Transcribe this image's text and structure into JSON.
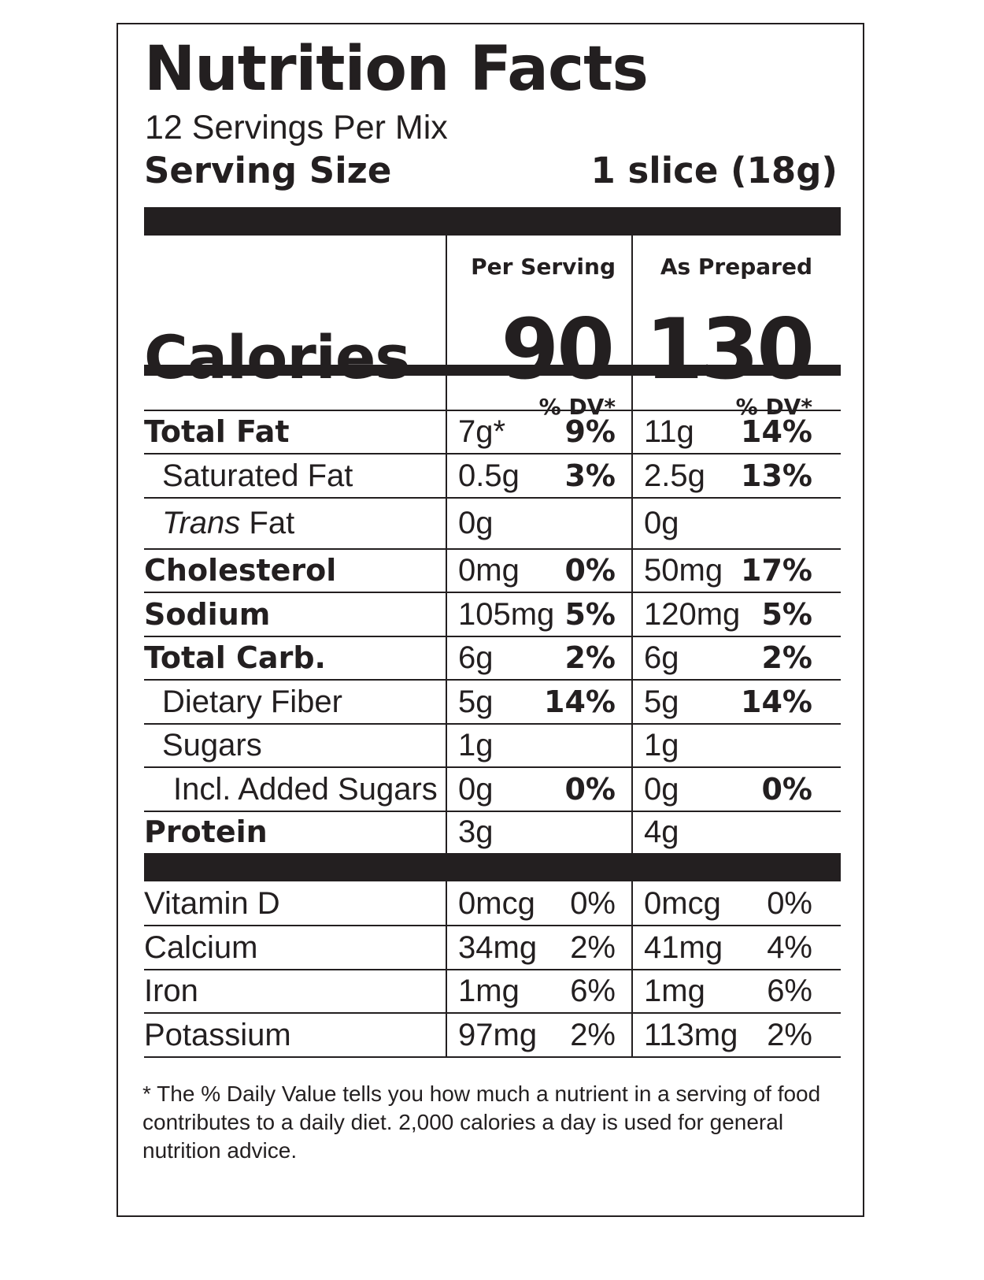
{
  "title": "Nutrition Facts",
  "servings_per_container": "12 Servings Per Mix",
  "serving_size": {
    "label": "Serving Size",
    "value": "1 slice (18g)"
  },
  "columns": {
    "per_serving": "Per Serving",
    "as_prepared": "As Prepared"
  },
  "calories": {
    "label": "Calories",
    "per_serving": "90",
    "as_prepared": "130"
  },
  "dv_header": "% DV*",
  "nutrients": [
    {
      "name": "Total Fat",
      "bold": true,
      "indent": 0,
      "amount1": "7g*",
      "pct1": "9%",
      "amount2": "11g",
      "pct2": "14%"
    },
    {
      "name": "Saturated Fat",
      "bold": false,
      "indent": 1,
      "amount1": "0.5g",
      "pct1": "3%",
      "amount2": "2.5g",
      "pct2": "13%"
    },
    {
      "name_italic": "Trans",
      "name": " Fat",
      "bold": false,
      "indent": 1,
      "amount1": "0g",
      "pct1": "",
      "amount2": "0g",
      "pct2": ""
    },
    {
      "name": "Cholesterol",
      "bold": true,
      "indent": 0,
      "amount1": "0mg",
      "pct1": "0%",
      "amount2": "50mg",
      "pct2": "17%"
    },
    {
      "name": "Sodium",
      "bold": true,
      "indent": 0,
      "amount1": "105mg",
      "pct1": "5%",
      "amount2": "120mg",
      "pct2": "5%"
    },
    {
      "name": "Total Carb.",
      "bold": true,
      "indent": 0,
      "amount1": "6g",
      "pct1": "2%",
      "amount2": "6g",
      "pct2": "2%"
    },
    {
      "name": "Dietary Fiber",
      "bold": false,
      "indent": 1,
      "amount1": "5g",
      "pct1": "14%",
      "amount2": "5g",
      "pct2": "14%"
    },
    {
      "name": "Sugars",
      "bold": false,
      "indent": 1,
      "amount1": "1g",
      "pct1": "",
      "amount2": "1g",
      "pct2": ""
    },
    {
      "name": "Incl. Added Sugars",
      "bold": false,
      "indent": 2,
      "amount1": "0g",
      "pct1": "0%",
      "amount2": "0g",
      "pct2": "0%"
    },
    {
      "name": "Protein",
      "bold": true,
      "indent": 0,
      "amount1": "3g",
      "pct1": "",
      "amount2": "4g",
      "pct2": ""
    }
  ],
  "vitamins": [
    {
      "name": "Vitamin D",
      "amount1": "0mcg",
      "pct1": "0%",
      "amount2": "0mcg",
      "pct2": "0%"
    },
    {
      "name": "Calcium",
      "amount1": "34mg",
      "pct1": "2%",
      "amount2": "41mg",
      "pct2": "4%"
    },
    {
      "name": "Iron",
      "amount1": "1mg",
      "pct1": "6%",
      "amount2": "1mg",
      "pct2": "6%"
    },
    {
      "name": "Potassium",
      "amount1": "97mg",
      "pct1": "2%",
      "amount2": "113mg",
      "pct2": "2%"
    }
  ],
  "footnote": "* The % Daily Value tells you how much a nutrient in a serving of food contributes to a daily diet. 2,000 calories a day is used for general nutrition advice."
}
